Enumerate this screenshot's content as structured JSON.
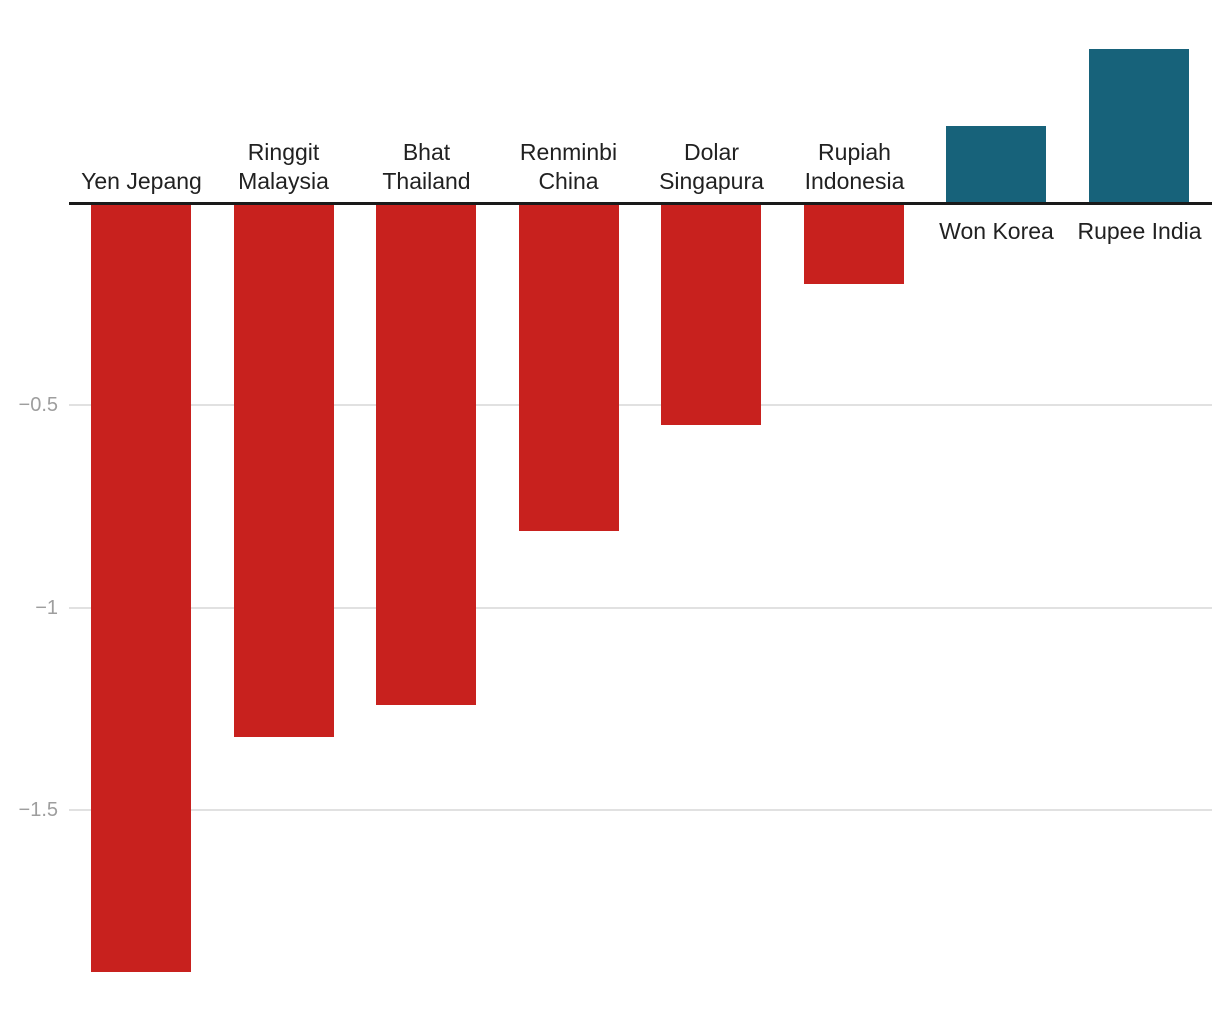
{
  "chart_data": {
    "type": "bar",
    "orientation": "vertical",
    "title": "",
    "xlabel": "",
    "ylabel": "",
    "categories": [
      "Yen Jepang",
      "Ringgit Malaysia",
      "Bhat Thailand",
      "Renminbi China",
      "Dolar Singapura",
      "Rupiah Indonesia",
      "Won Korea",
      "Rupee India"
    ],
    "label_lines": [
      [
        "Yen Jepang"
      ],
      [
        "Ringgit",
        "Malaysia"
      ],
      [
        "Bhat",
        "Thailand"
      ],
      [
        "Renminbi",
        "China"
      ],
      [
        "Dolar",
        "Singapura"
      ],
      [
        "Rupiah",
        "Indonesia"
      ],
      [
        "Won Korea"
      ],
      [
        "Rupee India"
      ]
    ],
    "values": [
      -1.9,
      -1.32,
      -1.24,
      -0.81,
      -0.55,
      -0.2,
      0.19,
      0.38
    ],
    "y_ticks": [
      -0.5,
      -1,
      -1.5
    ],
    "ylim": [
      -2.02,
      0.5
    ],
    "grid": true,
    "legend": "none",
    "colors": {
      "negative_bar": "#c8211e",
      "positive_bar": "#17627a",
      "axis_line": "#1a1a1a",
      "gridline": "#e1e1e1",
      "tick_label": "#9e9e9e",
      "category_label": "#212121"
    }
  }
}
